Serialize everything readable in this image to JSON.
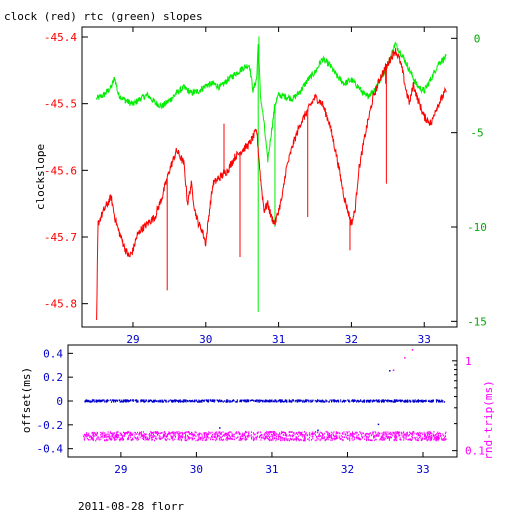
{
  "title": "clock (red) rtc (green) slopes",
  "footer": "2011-08-28 florr",
  "colors": {
    "clock": "#ff0000",
    "rtc": "#00ee00",
    "offset": "#0000cc",
    "rtt": "#ff00ff",
    "frame": "#000000"
  },
  "chart_data": [
    {
      "type": "line",
      "ylabel": "clockslope",
      "y2label": "",
      "xlim": [
        28.3,
        33.45
      ],
      "ylim": [
        -45.835,
        -45.385
      ],
      "y2lim": [
        -15.3,
        0.6
      ],
      "xticks": [
        29,
        30,
        31,
        32,
        33
      ],
      "yticks": [
        -45.4,
        -45.5,
        -45.6,
        -45.7,
        -45.8
      ],
      "y2ticks": [
        0,
        -5,
        -10,
        -15
      ],
      "xtick_labels": [
        "29",
        "30",
        "31",
        "32",
        "33"
      ],
      "ytick_labels": [
        "-45.4",
        "-45.5",
        "-45.6",
        "-45.7",
        "-45.8"
      ],
      "y2tick_labels": [
        "0",
        "-5",
        "-10",
        "-15"
      ],
      "series": [
        {
          "key": "clock",
          "axis": "left",
          "x": [
            28.5,
            28.52,
            28.6,
            28.7,
            28.75,
            28.8,
            28.9,
            28.95,
            29.0,
            29.05,
            29.1,
            29.2,
            29.3,
            29.4,
            29.5,
            29.6,
            29.7,
            29.75,
            29.8,
            29.85,
            29.9,
            29.95,
            30.0,
            30.05,
            30.1,
            30.2,
            30.3,
            30.4,
            30.5,
            30.6,
            30.7,
            30.75,
            30.8,
            30.85,
            30.9,
            30.95,
            31.0,
            31.05,
            31.1,
            31.2,
            31.3,
            31.4,
            31.5,
            31.6,
            31.7,
            31.8,
            31.9,
            32.0,
            32.05,
            32.1,
            32.2,
            32.3,
            32.4,
            32.5,
            32.6,
            32.65,
            32.7,
            32.75,
            32.8,
            32.85,
            32.9,
            33.0,
            33.1,
            33.15,
            33.2,
            33.3
          ],
          "y": [
            -45.83,
            -45.68,
            -45.66,
            -45.64,
            -45.67,
            -45.69,
            -45.72,
            -45.73,
            -45.72,
            -45.7,
            -45.69,
            -45.68,
            -45.67,
            -45.64,
            -45.6,
            -45.57,
            -45.59,
            -45.65,
            -45.62,
            -45.66,
            -45.68,
            -45.69,
            -45.71,
            -45.66,
            -45.62,
            -45.61,
            -45.6,
            -45.58,
            -45.57,
            -45.56,
            -45.54,
            -45.61,
            -45.66,
            -45.65,
            -45.67,
            -45.68,
            -45.66,
            -45.64,
            -45.6,
            -45.56,
            -45.53,
            -45.51,
            -45.49,
            -45.5,
            -45.53,
            -45.58,
            -45.64,
            -45.68,
            -45.66,
            -45.6,
            -45.54,
            -45.49,
            -45.46,
            -45.44,
            -45.42,
            -45.43,
            -45.45,
            -45.48,
            -45.5,
            -45.47,
            -45.49,
            -45.52,
            -45.53,
            -45.51,
            -45.5,
            -45.48
          ]
        },
        {
          "key": "rtc",
          "axis": "right",
          "x": [
            28.5,
            28.6,
            28.7,
            28.75,
            28.8,
            28.9,
            29.0,
            29.1,
            29.2,
            29.3,
            29.4,
            29.5,
            29.6,
            29.7,
            29.8,
            29.9,
            30.0,
            30.1,
            30.2,
            30.3,
            30.4,
            30.5,
            30.6,
            30.65,
            30.7,
            30.72,
            30.75,
            30.8,
            30.85,
            30.9,
            30.95,
            31.0,
            31.1,
            31.2,
            31.3,
            31.4,
            31.5,
            31.6,
            31.7,
            31.8,
            31.9,
            32.0,
            32.1,
            32.2,
            32.3,
            32.4,
            32.5,
            32.6,
            32.7,
            32.8,
            32.9,
            33.0,
            33.1,
            33.2,
            33.3
          ],
          "y": [
            -3.2,
            -3.0,
            -2.6,
            -2.1,
            -3.0,
            -3.3,
            -3.5,
            -3.2,
            -3.0,
            -3.4,
            -3.6,
            -3.3,
            -2.9,
            -2.6,
            -2.9,
            -2.8,
            -2.5,
            -2.4,
            -2.6,
            -2.2,
            -1.9,
            -1.6,
            -1.4,
            -2.8,
            -2.1,
            -0.3,
            -3.0,
            -4.5,
            -6.5,
            -5.0,
            -3.5,
            -3.0,
            -3.1,
            -3.2,
            -2.8,
            -2.2,
            -1.8,
            -1.1,
            -1.4,
            -2.0,
            -2.4,
            -2.2,
            -2.6,
            -3.1,
            -2.8,
            -2.2,
            -1.4,
            -0.3,
            -0.9,
            -1.7,
            -2.5,
            -2.8,
            -2.1,
            -1.3,
            -1.0
          ]
        }
      ],
      "spikes": [
        {
          "series": "clock",
          "x": 29.47,
          "y": -45.78
        },
        {
          "series": "clock",
          "x": 30.25,
          "y": -45.53
        },
        {
          "series": "clock",
          "x": 30.47,
          "y": -45.73
        },
        {
          "series": "clock",
          "x": 31.3,
          "y": -45.53
        },
        {
          "series": "clock",
          "x": 31.4,
          "y": -45.67
        },
        {
          "series": "clock",
          "x": 31.98,
          "y": -45.72
        },
        {
          "series": "clock",
          "x": 32.48,
          "y": -45.62
        },
        {
          "series": "clock",
          "x": 32.47,
          "y": -45.47
        },
        {
          "series": "rtc",
          "x": 30.72,
          "y": -14.5
        },
        {
          "series": "rtc",
          "x": 30.73,
          "y": 0.1
        },
        {
          "series": "rtc",
          "x": 30.95,
          "y": -10.0
        }
      ]
    },
    {
      "type": "scatter",
      "ylabel": "offset(ms)",
      "y2label": "rnd-trip(ms)",
      "xlim": [
        28.3,
        33.45
      ],
      "ylim": [
        -0.47,
        0.47
      ],
      "y2lim_log": [
        0.085,
        1.5
      ],
      "y2scale": "log",
      "xticks": [
        29,
        30,
        31,
        32,
        33
      ],
      "yticks": [
        0.4,
        0.2,
        0,
        -0.2,
        -0.4
      ],
      "y2ticks": [
        1,
        0.1
      ],
      "xtick_labels": [
        "29",
        "30",
        "31",
        "32",
        "33"
      ],
      "ytick_labels": [
        "0.4",
        "0.2",
        "0",
        "-0.2",
        "-0.4"
      ],
      "y2tick_labels": [
        "1",
        "0.1"
      ],
      "series": [
        {
          "key": "offset",
          "axis": "left",
          "x_range": [
            28.5,
            33.3
          ],
          "level": 0.0,
          "spread": 0.008
        },
        {
          "key": "rtt",
          "axis": "right",
          "x_range": [
            28.5,
            33.3
          ],
          "level": 0.145,
          "spread_ratio": 1.12
        }
      ],
      "outliers": [
        {
          "series": "rtt",
          "x": 32.85,
          "y": 1.35
        },
        {
          "series": "rtt",
          "x": 32.75,
          "y": 1.1
        },
        {
          "series": "rtt",
          "x": 32.6,
          "y": 0.8
        },
        {
          "series": "offset",
          "x": 32.55,
          "y": 0.26
        },
        {
          "series": "offset",
          "x": 32.4,
          "y": -0.19
        },
        {
          "series": "offset",
          "x": 31.6,
          "y": -0.24
        },
        {
          "series": "offset",
          "x": 30.3,
          "y": -0.22
        }
      ]
    }
  ]
}
